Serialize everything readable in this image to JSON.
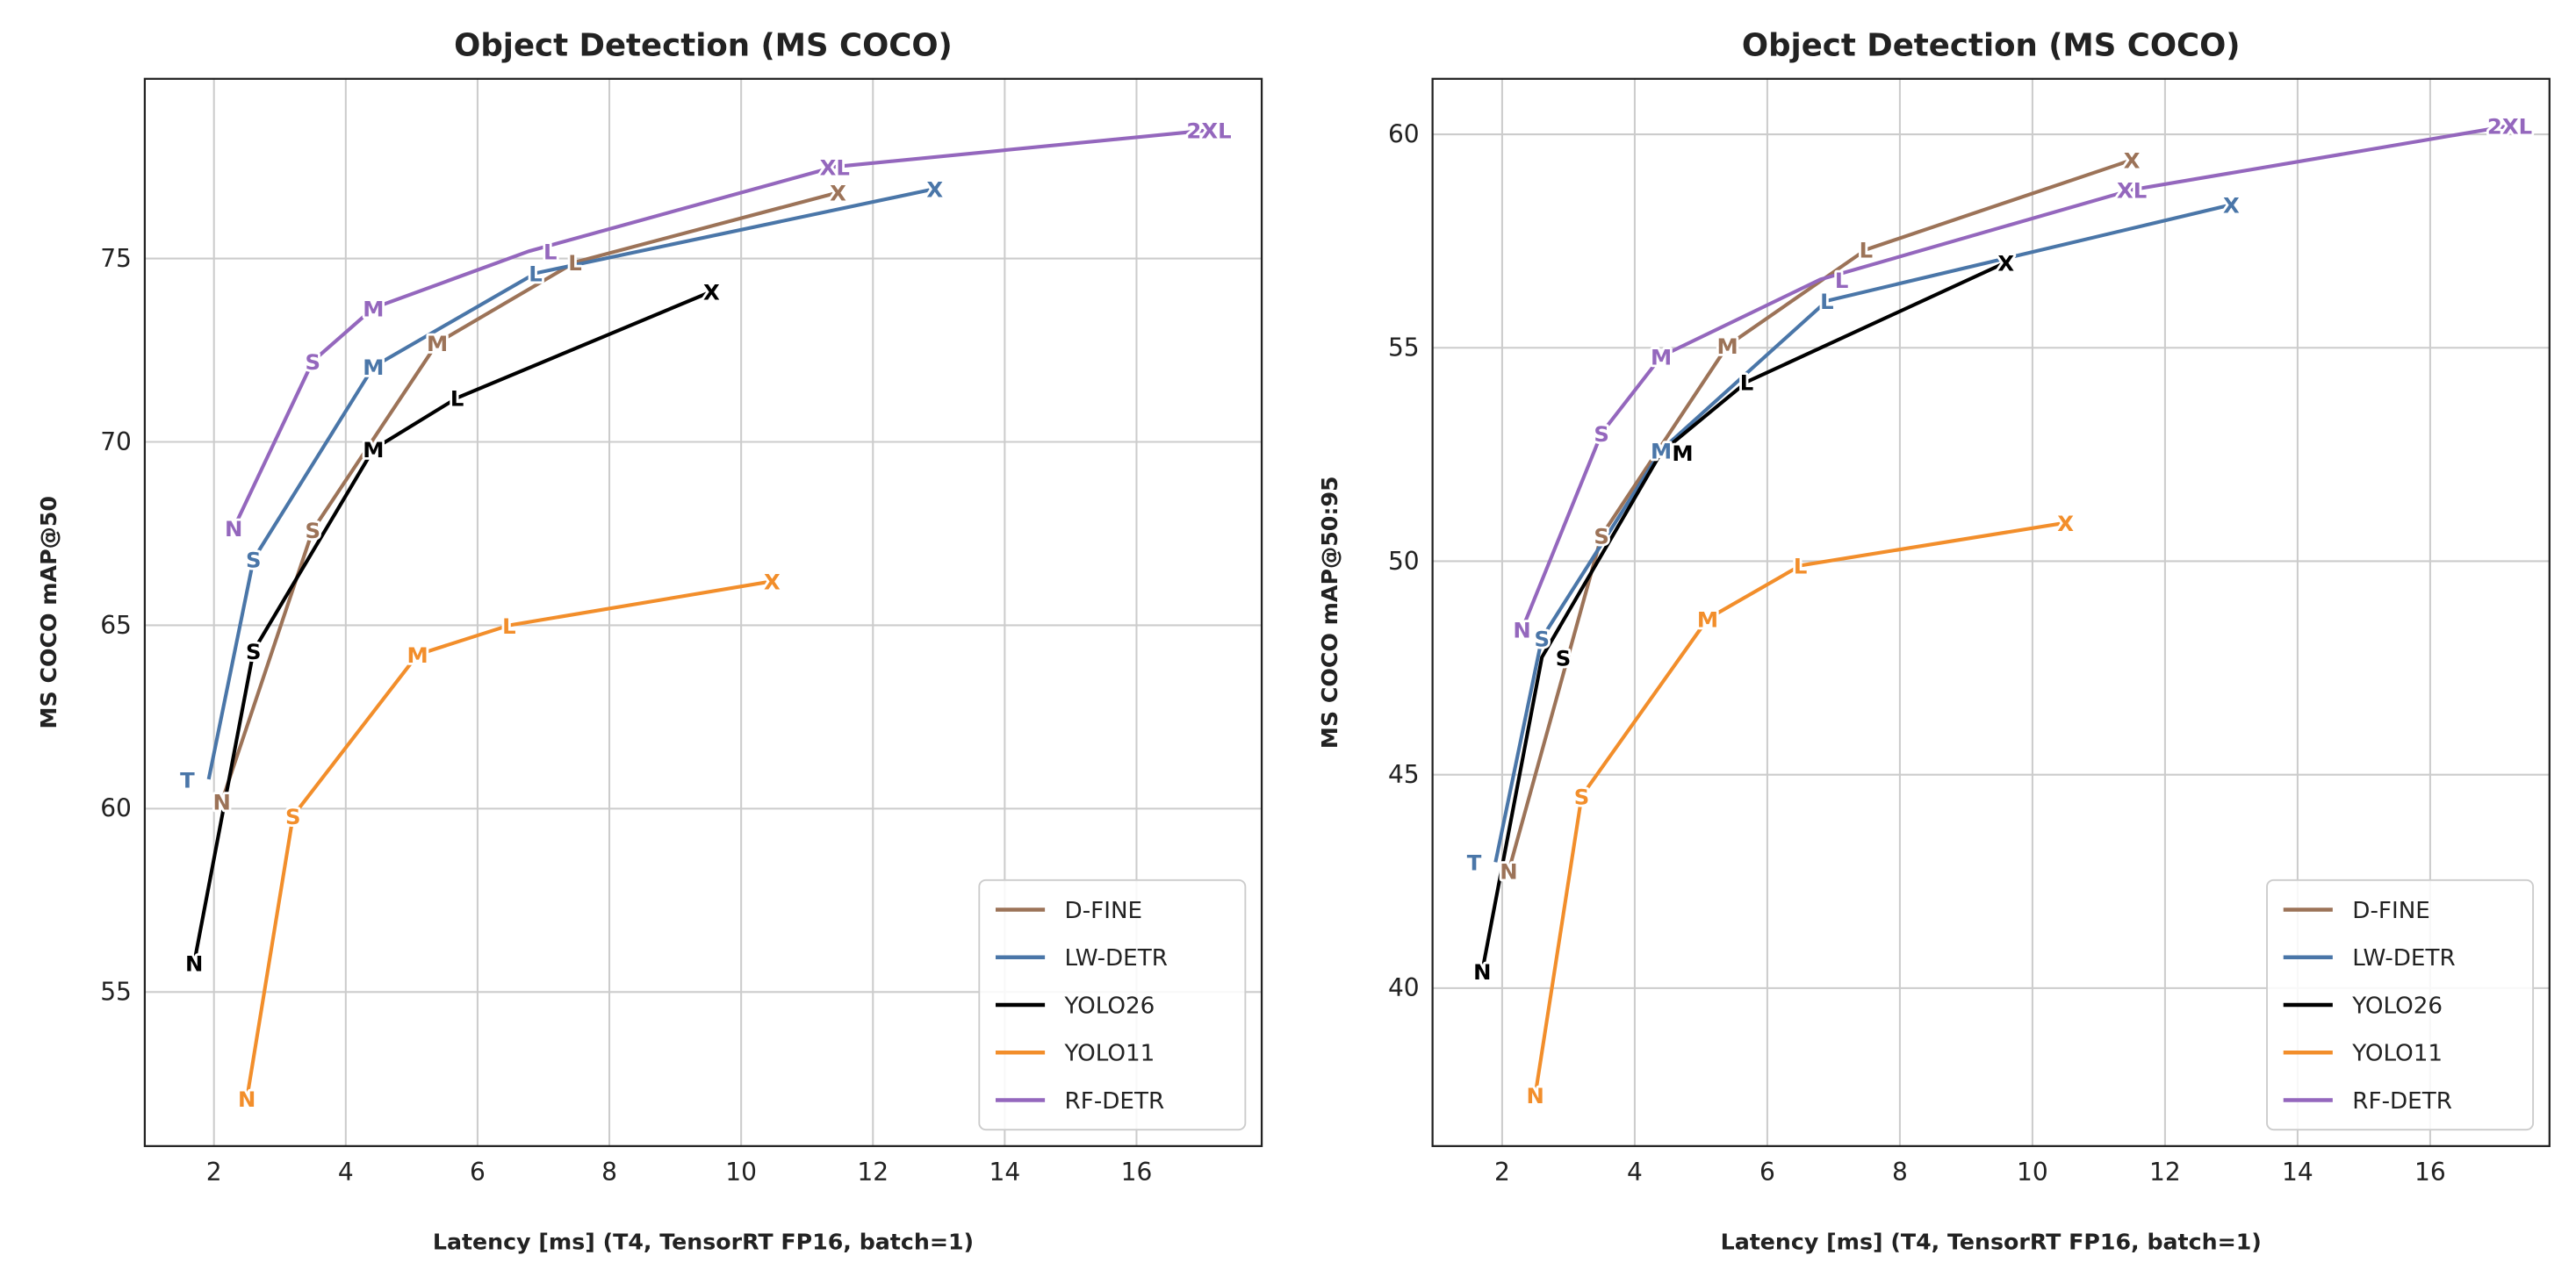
{
  "chart_data": [
    {
      "type": "line",
      "title": "Object Detection (MS COCO)",
      "xlabel": "Latency [ms] (T4, TensorRT FP16, batch=1)",
      "ylabel": "MS COCO mAP@50",
      "xlim": [
        0.95,
        17.9
      ],
      "ylim": [
        50.8,
        79.9
      ],
      "xticks": [
        2,
        4,
        6,
        8,
        10,
        12,
        14,
        16
      ],
      "yticks": [
        55,
        60,
        65,
        70,
        75
      ],
      "grid": true,
      "legend": "bottom-right",
      "series": [
        {
          "name": "D-FINE",
          "color": "#9c7358",
          "points": [
            {
              "label": "N",
              "x": 2.12,
              "y": 60.2
            },
            {
              "label": "S",
              "x": 3.5,
              "y": 67.6
            },
            {
              "label": "M",
              "x": 5.39,
              "y": 72.7
            },
            {
              "label": "L",
              "x": 7.48,
              "y": 74.9
            },
            {
              "label": "X",
              "x": 11.47,
              "y": 76.8
            }
          ]
        },
        {
          "name": "LW-DETR",
          "color": "#4a76a8",
          "points": [
            {
              "label": "T",
              "x": 1.92,
              "y": 60.8
            },
            {
              "label": "S",
              "x": 2.6,
              "y": 66.8
            },
            {
              "label": "M",
              "x": 4.42,
              "y": 72.05
            },
            {
              "label": "L",
              "x": 6.88,
              "y": 74.6
            },
            {
              "label": "X",
              "x": 12.94,
              "y": 76.9
            }
          ]
        },
        {
          "name": "YOLO26",
          "color": "#000000",
          "points": [
            {
              "label": "N",
              "x": 1.7,
              "y": 55.8
            },
            {
              "label": "S",
              "x": 2.6,
              "y": 64.3
            },
            {
              "label": "M",
              "x": 4.42,
              "y": 69.8
            },
            {
              "label": "L",
              "x": 5.69,
              "y": 71.2
            },
            {
              "label": "X",
              "x": 9.55,
              "y": 74.1
            }
          ]
        },
        {
          "name": "YOLO11",
          "color": "#f28e2b",
          "points": [
            {
              "label": "N",
              "x": 2.5,
              "y": 52.1
            },
            {
              "label": "S",
              "x": 3.2,
              "y": 59.8
            },
            {
              "label": "M",
              "x": 5.09,
              "y": 64.2
            },
            {
              "label": "L",
              "x": 6.48,
              "y": 65.0
            },
            {
              "label": "X",
              "x": 10.47,
              "y": 66.2
            }
          ]
        },
        {
          "name": "RF-DETR",
          "color": "#9467bd",
          "points": [
            {
              "label": "N",
              "x": 2.3,
              "y": 67.65
            },
            {
              "label": "S",
              "x": 3.5,
              "y": 72.2
            },
            {
              "label": "M",
              "x": 4.42,
              "y": 73.65
            },
            {
              "label": "L",
              "x": 6.78,
              "y": 75.2
            },
            {
              "label": "XL",
              "x": 11.42,
              "y": 77.5
            },
            {
              "label": "2XL",
              "x": 17.1,
              "y": 78.5
            }
          ]
        }
      ]
    },
    {
      "type": "line",
      "title": "Object Detection (MS COCO)",
      "xlabel": "Latency [ms] (T4, TensorRT FP16, batch=1)",
      "ylabel": "MS COCO mAP@50:95",
      "xlim": [
        0.95,
        17.8
      ],
      "ylim": [
        36.3,
        61.3
      ],
      "xticks": [
        2,
        4,
        6,
        8,
        10,
        12,
        14,
        16
      ],
      "yticks": [
        40,
        45,
        50,
        55,
        60
      ],
      "grid": true,
      "legend": "bottom-right",
      "series": [
        {
          "name": "D-FINE",
          "color": "#9c7358",
          "points": [
            {
              "label": "N",
              "x": 2.1,
              "y": 42.75
            },
            {
              "label": "S",
              "x": 3.5,
              "y": 50.6
            },
            {
              "label": "M",
              "x": 5.4,
              "y": 55.05
            },
            {
              "label": "L",
              "x": 7.49,
              "y": 57.3
            },
            {
              "label": "X",
              "x": 11.5,
              "y": 59.4
            }
          ]
        },
        {
          "name": "LW-DETR",
          "color": "#4a76a8",
          "points": [
            {
              "label": "T",
              "x": 1.9,
              "y": 42.95
            },
            {
              "label": "S",
              "x": 2.6,
              "y": 48.2
            },
            {
              "label": "M",
              "x": 4.4,
              "y": 52.6
            },
            {
              "label": "L",
              "x": 6.9,
              "y": 56.1
            },
            {
              "label": "X",
              "x": 13.0,
              "y": 58.35
            }
          ]
        },
        {
          "name": "YOLO26",
          "color": "#000000",
          "points": [
            {
              "label": "N",
              "x": 1.7,
              "y": 40.4
            },
            {
              "label": "S",
              "x": 2.6,
              "y": 47.75
            },
            {
              "label": "M",
              "x": 4.4,
              "y": 52.55
            },
            {
              "label": "L",
              "x": 5.69,
              "y": 54.2
            },
            {
              "label": "X",
              "x": 9.6,
              "y": 57.0
            }
          ]
        },
        {
          "name": "YOLO11",
          "color": "#f28e2b",
          "points": [
            {
              "label": "N",
              "x": 2.5,
              "y": 37.5
            },
            {
              "label": "S",
              "x": 3.2,
              "y": 44.5
            },
            {
              "label": "M",
              "x": 5.1,
              "y": 48.65
            },
            {
              "label": "L",
              "x": 6.5,
              "y": 49.9
            },
            {
              "label": "X",
              "x": 10.5,
              "y": 50.9
            }
          ]
        },
        {
          "name": "RF-DETR",
          "color": "#9467bd",
          "points": [
            {
              "label": "N",
              "x": 2.3,
              "y": 48.4
            },
            {
              "label": "S",
              "x": 3.5,
              "y": 53.0
            },
            {
              "label": "M",
              "x": 4.4,
              "y": 54.8
            },
            {
              "label": "L",
              "x": 6.8,
              "y": 56.6
            },
            {
              "label": "XL",
              "x": 11.5,
              "y": 58.7
            },
            {
              "label": "2XL",
              "x": 17.2,
              "y": 60.2
            }
          ]
        }
      ]
    }
  ]
}
